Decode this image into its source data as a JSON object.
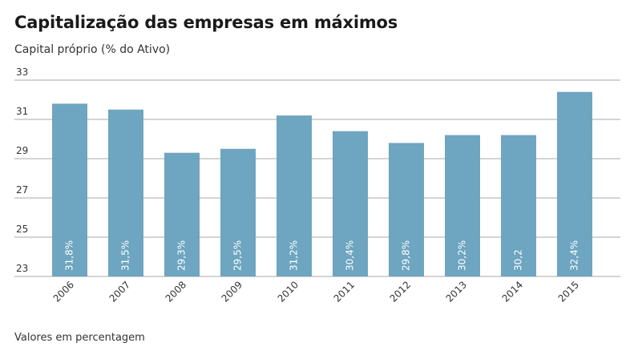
{
  "colors": {
    "bar": "#6ea5c0",
    "grid": "#aaaaaa",
    "text": "#333333"
  },
  "chart_data": {
    "type": "bar",
    "title": "Capitalização das empresas em máximos",
    "subtitle": "Capital próprio (% do Ativo)",
    "footnote": "Valores em percentagem",
    "xlabel": "",
    "ylabel": "",
    "categories": [
      "2006",
      "2007",
      "2008",
      "2009",
      "2010",
      "2011",
      "2012",
      "2013",
      "2014",
      "2015"
    ],
    "values": [
      31.8,
      31.5,
      29.3,
      29.5,
      31.2,
      30.4,
      29.8,
      30.2,
      30.2,
      32.4
    ],
    "data_labels": [
      "31,8%",
      "31,5%",
      "29,3%",
      "29,5%",
      "31,2%",
      "30,4%",
      "29,8%",
      "30,2%",
      "30,2",
      "32,4%"
    ],
    "ylim": [
      23,
      33
    ],
    "yticks": [
      23,
      25,
      27,
      29,
      31,
      33
    ],
    "ytick_labels": [
      "23",
      "25",
      "27",
      "29",
      "31",
      "33"
    ],
    "grid": true
  }
}
